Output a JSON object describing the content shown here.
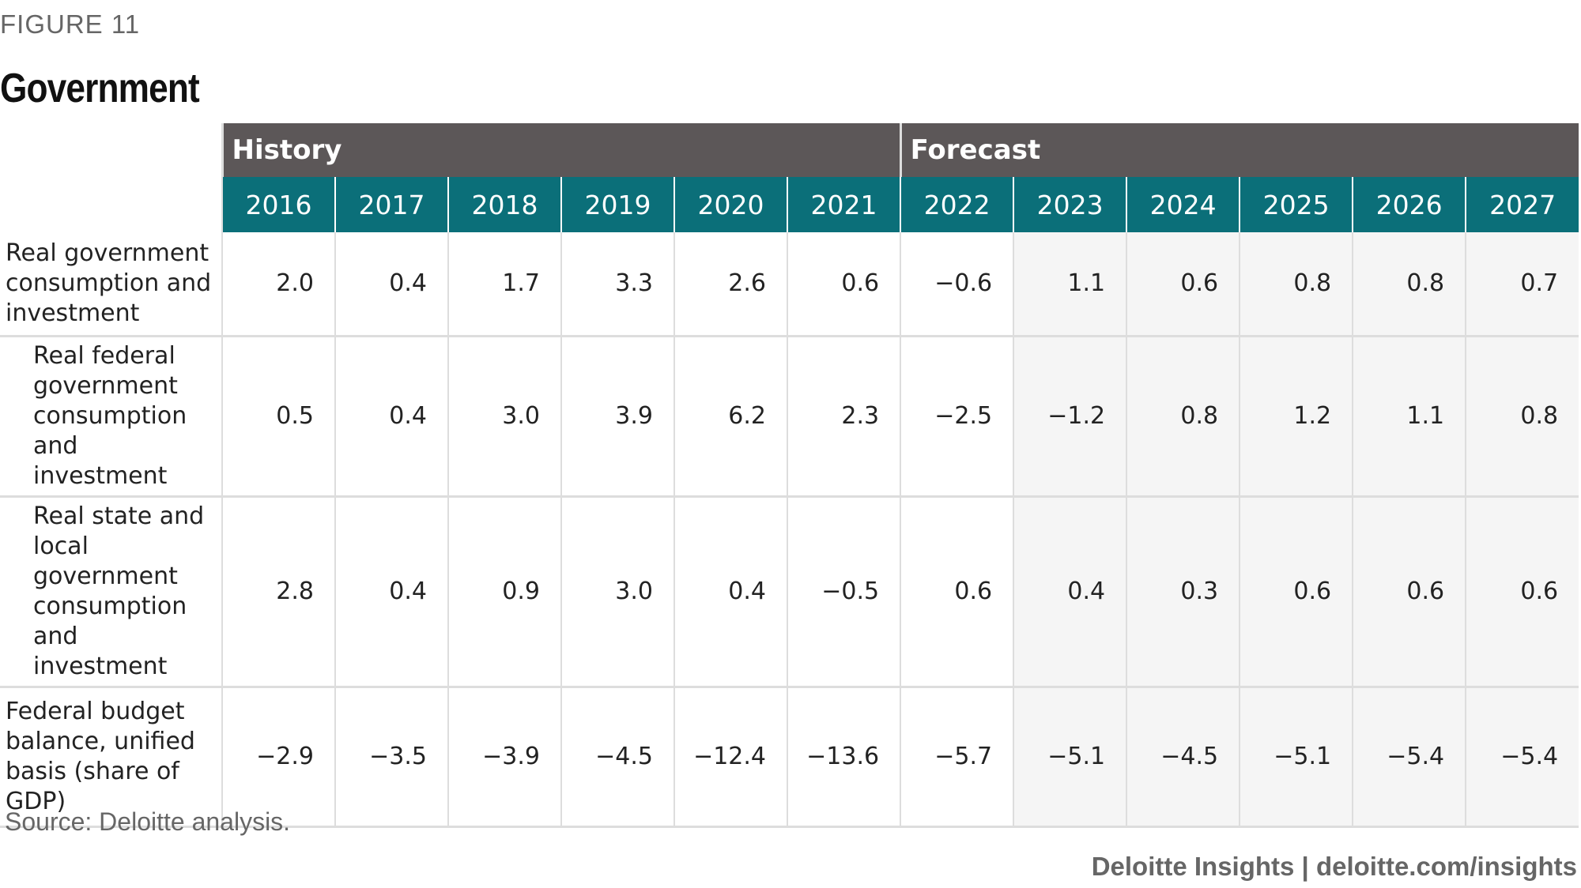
{
  "figure_label": "FIGURE 11",
  "title": "Government",
  "table": {
    "groups": [
      {
        "label": "History",
        "span": 6
      },
      {
        "label": "Forecast",
        "span": 6
      }
    ],
    "years": [
      "2016",
      "2017",
      "2018",
      "2019",
      "2020",
      "2021",
      "2022",
      "2023",
      "2024",
      "2025",
      "2026",
      "2027"
    ],
    "rows": [
      {
        "label": "Real government consumption and investment",
        "values": [
          "2.0",
          "0.4",
          "1.7",
          "3.3",
          "2.6",
          "0.6",
          "−0.6",
          "1.1",
          "0.6",
          "0.8",
          "0.8",
          "0.7"
        ]
      },
      {
        "label": "Real federal government consumption and investment",
        "values": [
          "0.5",
          "0.4",
          "3.0",
          "3.9",
          "6.2",
          "2.3",
          "−2.5",
          "−1.2",
          "0.8",
          "1.2",
          "1.1",
          "0.8"
        ]
      },
      {
        "label": "Real state and local government consumption and investment",
        "values": [
          "2.8",
          "0.4",
          "0.9",
          "3.0",
          "0.4",
          "−0.5",
          "0.6",
          "0.4",
          "0.3",
          "0.6",
          "0.6",
          "0.6"
        ]
      },
      {
        "label": "Federal budget balance, unified basis (share of GDP)",
        "values": [
          "−2.9",
          "−3.5",
          "−3.9",
          "−4.5",
          "−12.4",
          "−13.6",
          "−5.7",
          "−5.1",
          "−4.5",
          "−5.1",
          "−5.4",
          "−5.4"
        ]
      }
    ]
  },
  "source": "Source: Deloitte analysis.",
  "credit": "Deloitte Insights | deloitte.com/insights"
}
